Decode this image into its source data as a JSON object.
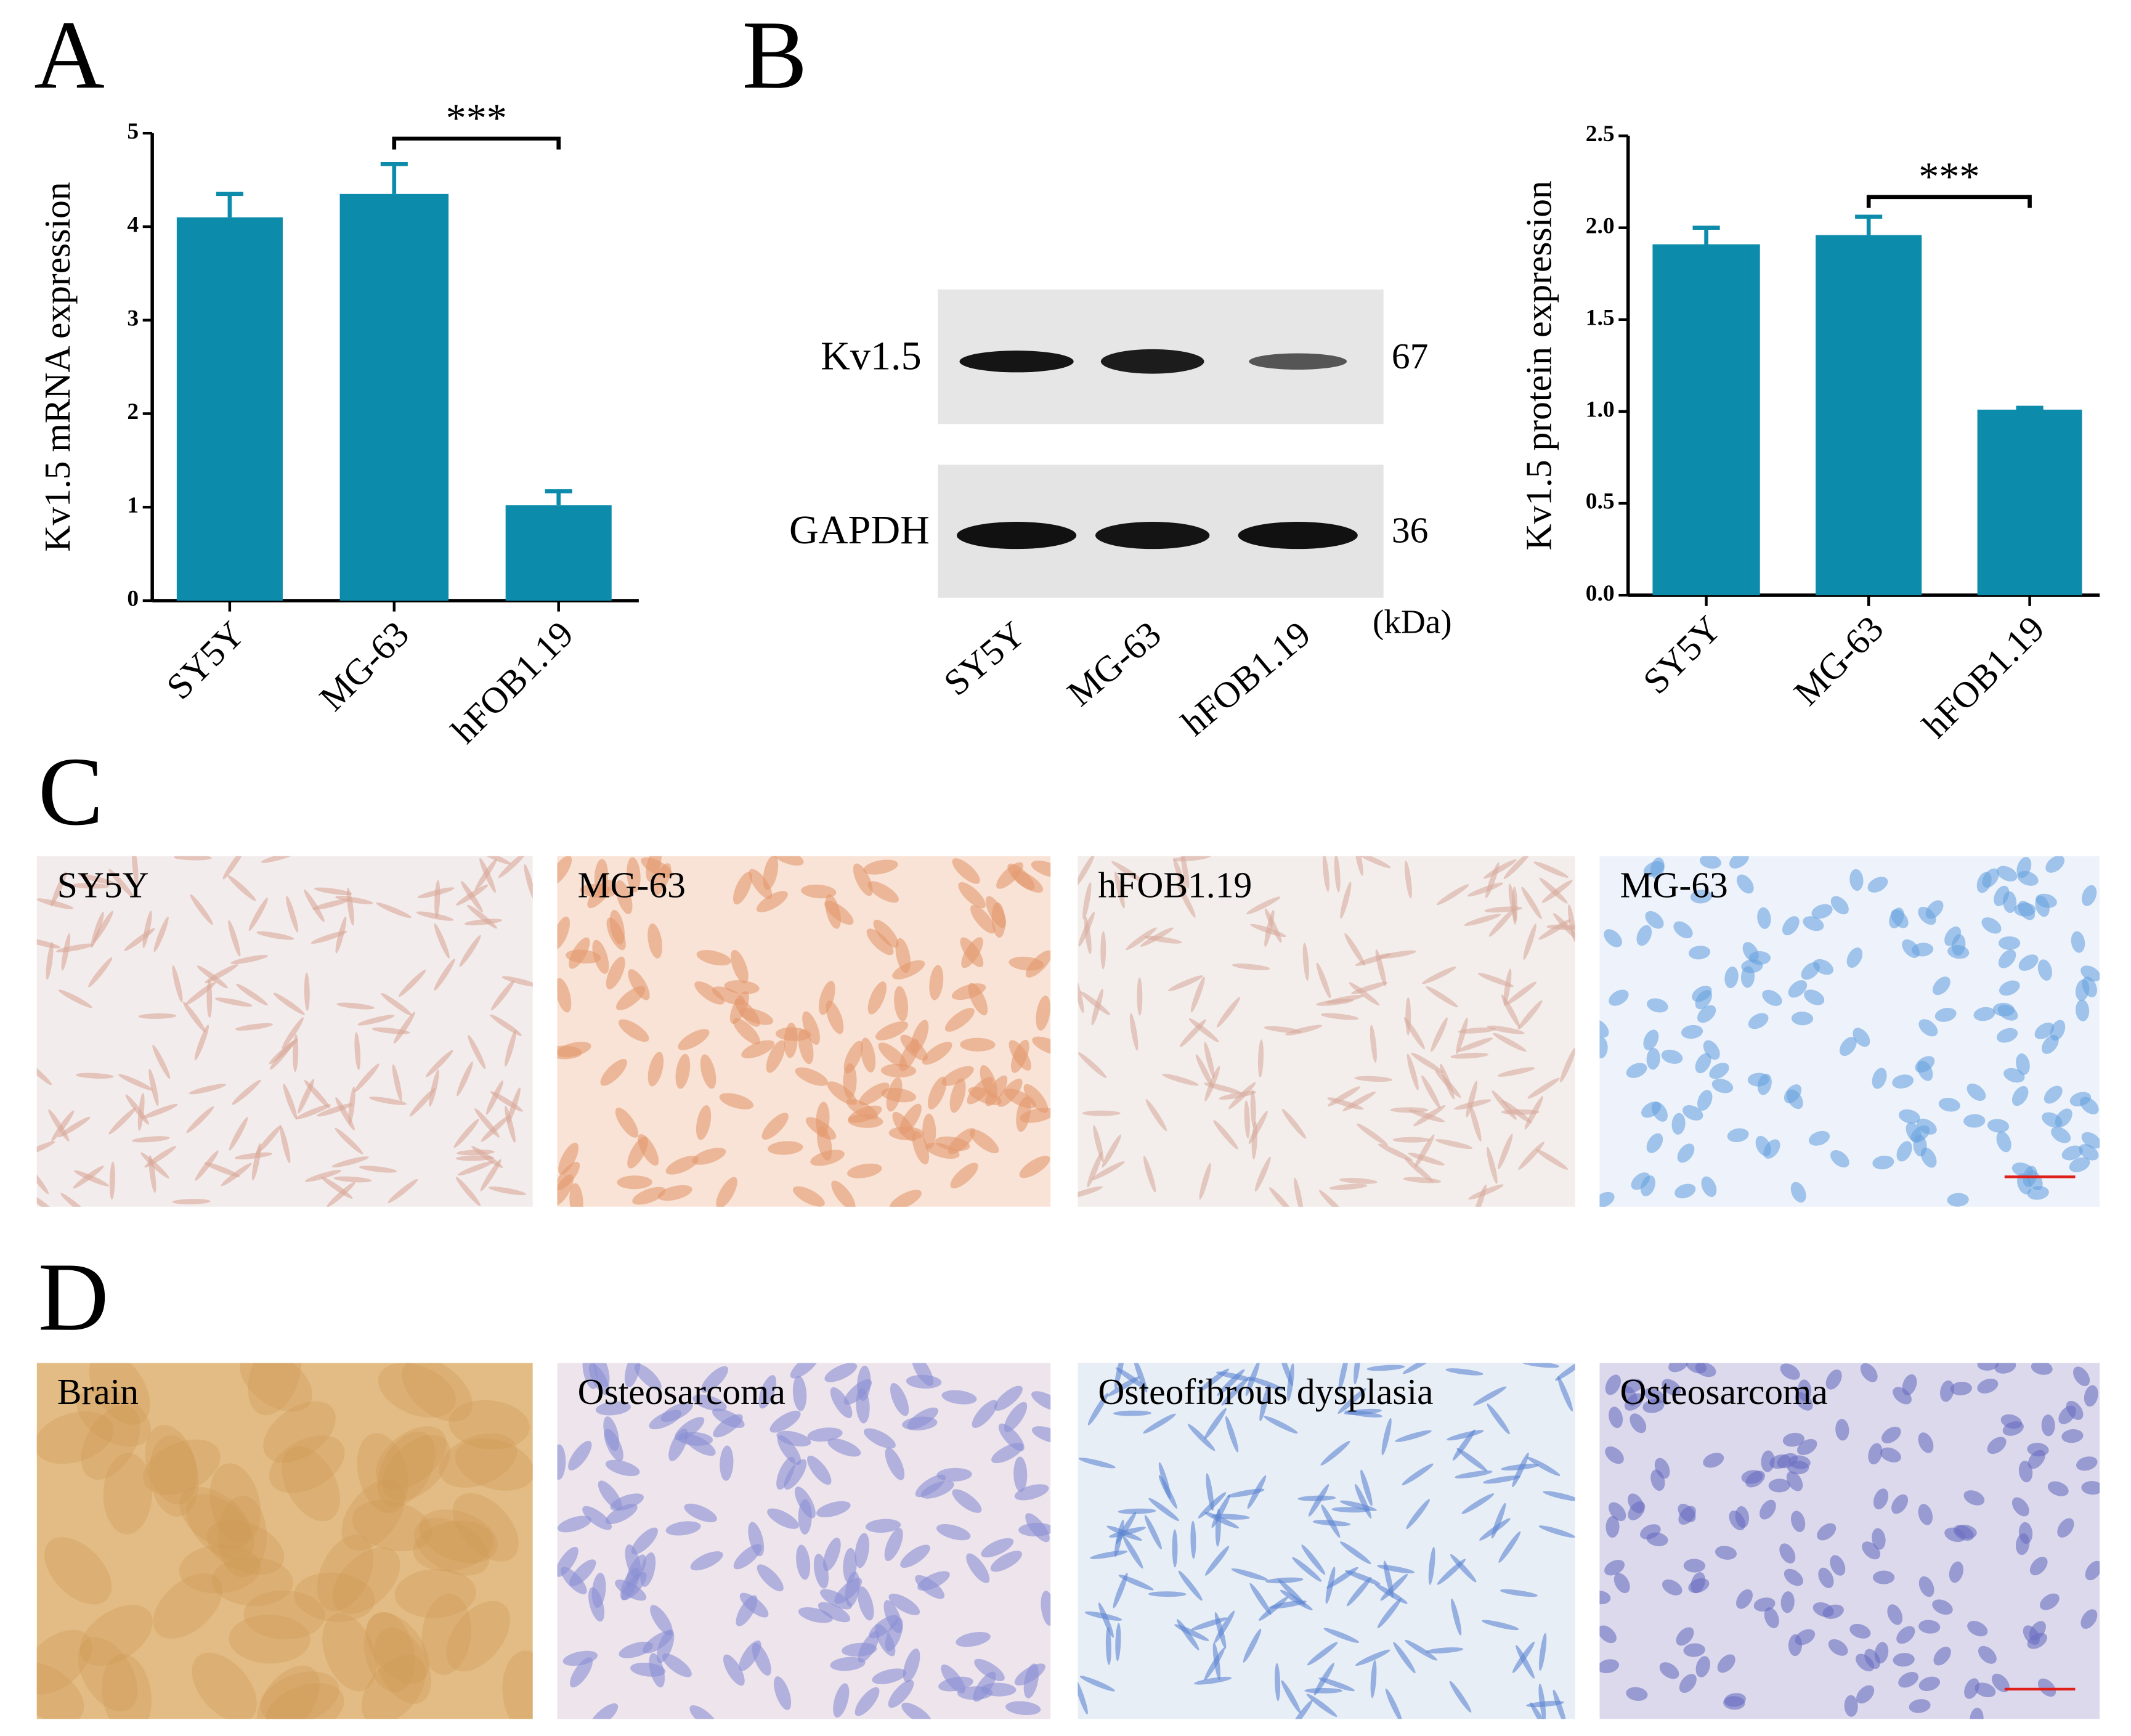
{
  "panel_letters": [
    "A",
    "B",
    "C",
    "D"
  ],
  "chart_data": [
    {
      "type": "bar",
      "ylabel": "Kv1.5 mRNA expression",
      "categories": [
        "SY5Y",
        "MG-63",
        "hFOB1.19"
      ],
      "values": [
        4.1,
        4.35,
        1.02
      ],
      "errors": [
        0.25,
        0.32,
        0.15
      ],
      "color": "#0c8bab",
      "ylim": [
        0,
        5
      ],
      "yticks": [
        0,
        1,
        2,
        3,
        4,
        5
      ],
      "annotation": "***"
    },
    {
      "type": "bar",
      "ylabel": "Kv1.5 protein expression",
      "categories": [
        "SY5Y",
        "MG-63",
        "hFOB1.19"
      ],
      "values": [
        1.91,
        1.96,
        1.01
      ],
      "errors": [
        0.09,
        0.1,
        0.01
      ],
      "color": "#0c8bab",
      "ylim": [
        0,
        2.5
      ],
      "yticks": [
        {
          "value": 0,
          "label": "0.0"
        },
        0.5,
        {
          "value": 1,
          "label": "1.0"
        },
        1.5,
        {
          "value": 2,
          "label": "2.0"
        },
        2.5
      ],
      "annotation": "***"
    }
  ],
  "blot": {
    "rows": [
      {
        "label": "Kv1.5",
        "size": "67"
      },
      {
        "label": "GAPDH",
        "size": "36"
      }
    ],
    "unit": "(kDa)",
    "lanes": [
      "SY5Y",
      "MG-63",
      "hFOB1.19"
    ]
  },
  "cells_images": [
    "SY5Y",
    "MG-63",
    "hFOB1.19",
    "MG-63"
  ],
  "tissue_images": [
    "Brain",
    "Osteosarcoma",
    "Osteofibrous dysplasia",
    "Osteosarcoma"
  ]
}
